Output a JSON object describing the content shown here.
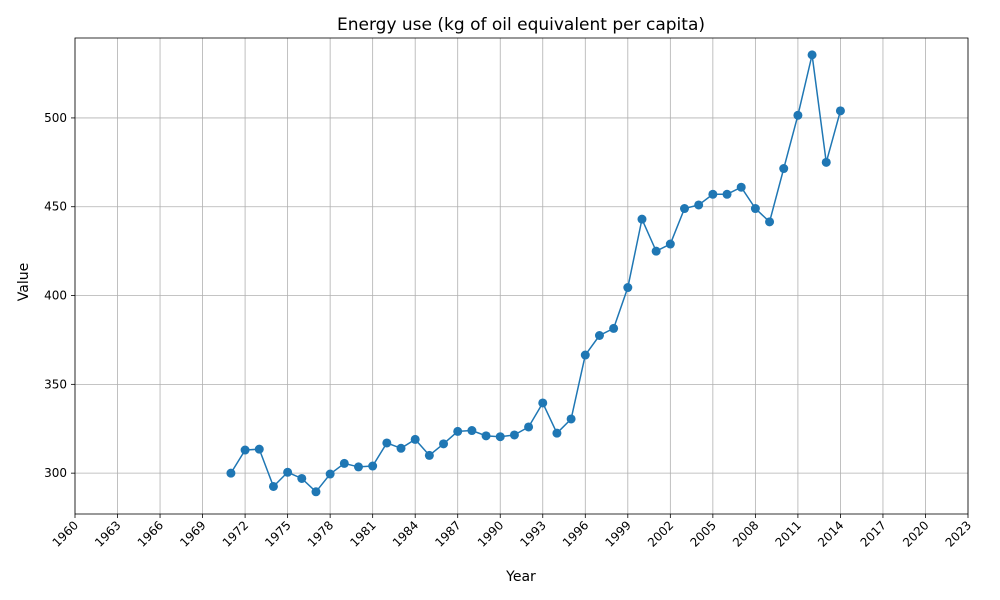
{
  "chart_data": {
    "type": "line",
    "title": "Energy use (kg of oil equivalent per capita)",
    "xlabel": "Year",
    "ylabel": "Value",
    "xlim": [
      1960,
      2023
    ],
    "ylim": [
      277,
      545
    ],
    "grid": true,
    "x_ticks": [
      1960,
      1963,
      1966,
      1969,
      1972,
      1975,
      1978,
      1981,
      1984,
      1987,
      1990,
      1993,
      1996,
      1999,
      2002,
      2005,
      2008,
      2011,
      2014,
      2017,
      2020,
      2023
    ],
    "y_ticks": [
      300,
      350,
      400,
      450,
      500
    ],
    "series": [
      {
        "color": "#1f77b4",
        "x": [
          1971,
          1972,
          1973,
          1974,
          1975,
          1976,
          1977,
          1978,
          1979,
          1980,
          1981,
          1982,
          1983,
          1984,
          1985,
          1986,
          1987,
          1988,
          1989,
          1990,
          1991,
          1992,
          1993,
          1994,
          1995,
          1996,
          1997,
          1998,
          1999,
          2000,
          2001,
          2002,
          2003,
          2004,
          2005,
          2006,
          2007,
          2008,
          2009,
          2010,
          2011,
          2012,
          2013,
          2014
        ],
        "values": [
          300,
          313,
          313.5,
          292.5,
          300.5,
          297,
          289.5,
          299.5,
          305.5,
          303.5,
          304,
          317,
          314,
          319,
          310,
          316.5,
          323.5,
          324,
          321,
          320.5,
          321.5,
          326,
          339.5,
          322.5,
          330.5,
          366.5,
          377.5,
          381.5,
          404.5,
          443,
          425,
          429,
          449,
          451,
          457,
          457,
          461,
          449,
          441.5,
          471.5,
          501.5,
          535.5,
          475,
          504
        ]
      }
    ]
  }
}
